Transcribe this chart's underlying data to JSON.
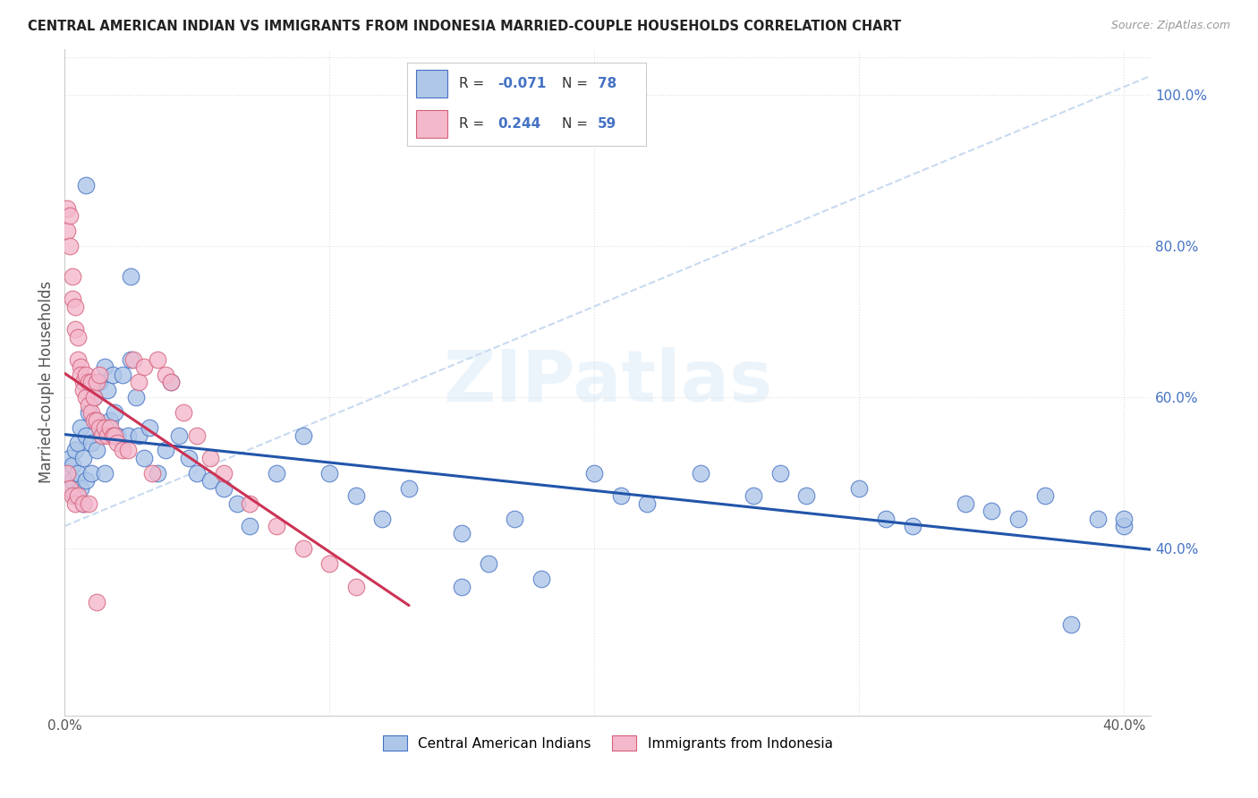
{
  "title": "CENTRAL AMERICAN INDIAN VS IMMIGRANTS FROM INDONESIA MARRIED-COUPLE HOUSEHOLDS CORRELATION CHART",
  "source": "Source: ZipAtlas.com",
  "ylabel": "Married-couple Households",
  "xlim": [
    0.0,
    0.41
  ],
  "ylim": [
    0.18,
    1.06
  ],
  "yticks": [
    0.4,
    0.6,
    0.8,
    1.0
  ],
  "ytick_labels": [
    "40.0%",
    "60.0%",
    "80.0%",
    "100.0%"
  ],
  "xticks": [
    0.0,
    0.1,
    0.2,
    0.3,
    0.4
  ],
  "xtick_labels": [
    "0.0%",
    "",
    "",
    "",
    "40.0%"
  ],
  "blue_R": -0.071,
  "blue_N": 78,
  "pink_R": 0.244,
  "pink_N": 59,
  "blue_fill": "#aec6e8",
  "blue_edge": "#4472c4",
  "pink_fill": "#f4b8cc",
  "pink_edge": "#d4607a",
  "blue_line": "#2255aa",
  "pink_line": "#cc3355",
  "diag_line": "#c8daf0",
  "grid_color": "#e0e0e0",
  "bg": "#ffffff",
  "tick_color": "#4472c4",
  "title_color": "#222222",
  "legend_text_color": "#333333",
  "legend_val_color": "#4472c4",
  "blue_x": [
    0.001,
    0.002,
    0.002,
    0.003,
    0.003,
    0.004,
    0.004,
    0.005,
    0.005,
    0.006,
    0.006,
    0.007,
    0.007,
    0.008,
    0.008,
    0.009,
    0.01,
    0.01,
    0.011,
    0.012,
    0.012,
    0.013,
    0.014,
    0.015,
    0.015,
    0.016,
    0.017,
    0.018,
    0.019,
    0.02,
    0.022,
    0.024,
    0.025,
    0.027,
    0.028,
    0.03,
    0.032,
    0.035,
    0.038,
    0.04,
    0.043,
    0.047,
    0.05,
    0.055,
    0.06,
    0.065,
    0.07,
    0.08,
    0.09,
    0.1,
    0.11,
    0.12,
    0.13,
    0.15,
    0.16,
    0.17,
    0.18,
    0.2,
    0.21,
    0.22,
    0.24,
    0.26,
    0.27,
    0.28,
    0.3,
    0.31,
    0.32,
    0.34,
    0.36,
    0.37,
    0.38,
    0.39,
    0.4,
    0.4,
    0.008,
    0.025,
    0.15,
    0.35
  ],
  "blue_y": [
    0.5,
    0.52,
    0.48,
    0.51,
    0.49,
    0.53,
    0.47,
    0.5,
    0.54,
    0.48,
    0.56,
    0.52,
    0.46,
    0.55,
    0.49,
    0.58,
    0.54,
    0.5,
    0.6,
    0.57,
    0.53,
    0.62,
    0.56,
    0.64,
    0.5,
    0.61,
    0.57,
    0.63,
    0.58,
    0.55,
    0.63,
    0.55,
    0.65,
    0.6,
    0.55,
    0.52,
    0.56,
    0.5,
    0.53,
    0.62,
    0.55,
    0.52,
    0.5,
    0.49,
    0.48,
    0.46,
    0.43,
    0.5,
    0.55,
    0.5,
    0.47,
    0.44,
    0.48,
    0.42,
    0.38,
    0.44,
    0.36,
    0.5,
    0.47,
    0.46,
    0.5,
    0.47,
    0.5,
    0.47,
    0.48,
    0.44,
    0.43,
    0.46,
    0.44,
    0.47,
    0.3,
    0.44,
    0.43,
    0.44,
    0.88,
    0.76,
    0.35,
    0.45
  ],
  "pink_x": [
    0.001,
    0.001,
    0.002,
    0.002,
    0.003,
    0.003,
    0.004,
    0.004,
    0.005,
    0.005,
    0.006,
    0.006,
    0.007,
    0.007,
    0.008,
    0.008,
    0.009,
    0.009,
    0.01,
    0.01,
    0.011,
    0.011,
    0.012,
    0.012,
    0.013,
    0.013,
    0.014,
    0.015,
    0.016,
    0.017,
    0.018,
    0.019,
    0.02,
    0.022,
    0.024,
    0.026,
    0.028,
    0.03,
    0.033,
    0.035,
    0.038,
    0.04,
    0.045,
    0.05,
    0.055,
    0.06,
    0.07,
    0.08,
    0.09,
    0.1,
    0.11,
    0.001,
    0.002,
    0.003,
    0.004,
    0.005,
    0.007,
    0.009,
    0.012
  ],
  "pink_y": [
    0.85,
    0.82,
    0.84,
    0.8,
    0.76,
    0.73,
    0.72,
    0.69,
    0.68,
    0.65,
    0.64,
    0.63,
    0.62,
    0.61,
    0.6,
    0.63,
    0.59,
    0.62,
    0.58,
    0.62,
    0.6,
    0.57,
    0.57,
    0.62,
    0.56,
    0.63,
    0.55,
    0.56,
    0.55,
    0.56,
    0.55,
    0.55,
    0.54,
    0.53,
    0.53,
    0.65,
    0.62,
    0.64,
    0.5,
    0.65,
    0.63,
    0.62,
    0.58,
    0.55,
    0.52,
    0.5,
    0.46,
    0.43,
    0.4,
    0.38,
    0.35,
    0.5,
    0.48,
    0.47,
    0.46,
    0.47,
    0.46,
    0.46,
    0.33
  ]
}
